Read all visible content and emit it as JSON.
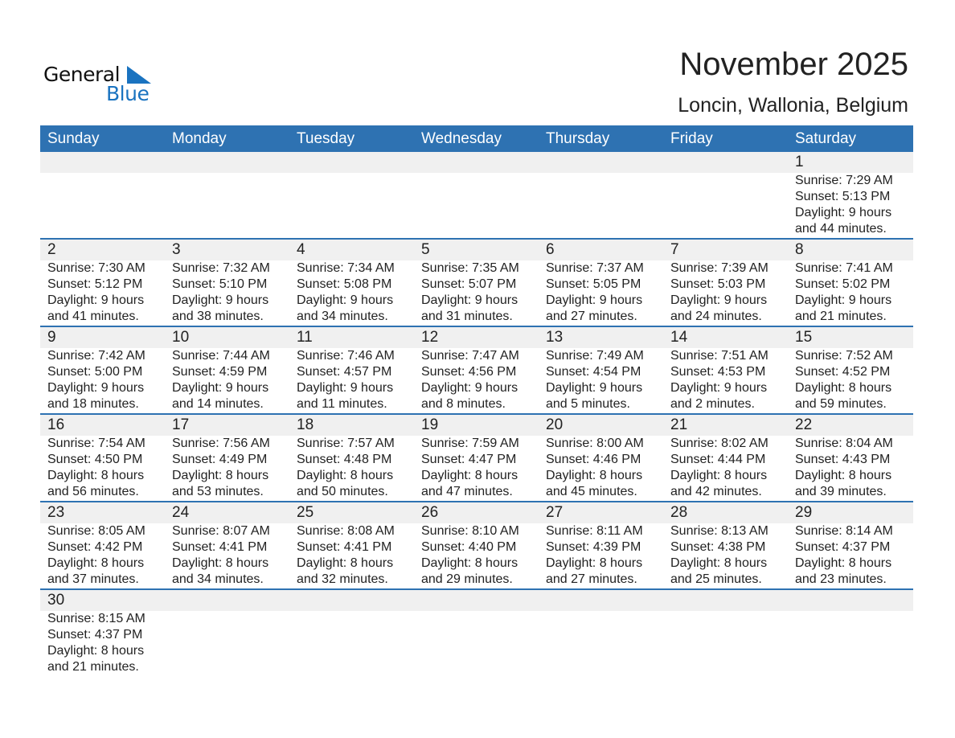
{
  "logo": {
    "line1": "General",
    "line2": "Blue",
    "accent": "#1a73c0"
  },
  "title": "November 2025",
  "subtitle": "Loncin, Wallonia, Belgium",
  "header_color": "#2e72b2",
  "weekdays": [
    "Sunday",
    "Monday",
    "Tuesday",
    "Wednesday",
    "Thursday",
    "Friday",
    "Saturday"
  ],
  "weeks": [
    [
      null,
      null,
      null,
      null,
      null,
      null,
      {
        "day": "1",
        "lines": [
          "Sunrise: 7:29 AM",
          "Sunset: 5:13 PM",
          "Daylight: 9 hours",
          "and 44 minutes."
        ]
      }
    ],
    [
      {
        "day": "2",
        "lines": [
          "Sunrise: 7:30 AM",
          "Sunset: 5:12 PM",
          "Daylight: 9 hours",
          "and 41 minutes."
        ]
      },
      {
        "day": "3",
        "lines": [
          "Sunrise: 7:32 AM",
          "Sunset: 5:10 PM",
          "Daylight: 9 hours",
          "and 38 minutes."
        ]
      },
      {
        "day": "4",
        "lines": [
          "Sunrise: 7:34 AM",
          "Sunset: 5:08 PM",
          "Daylight: 9 hours",
          "and 34 minutes."
        ]
      },
      {
        "day": "5",
        "lines": [
          "Sunrise: 7:35 AM",
          "Sunset: 5:07 PM",
          "Daylight: 9 hours",
          "and 31 minutes."
        ]
      },
      {
        "day": "6",
        "lines": [
          "Sunrise: 7:37 AM",
          "Sunset: 5:05 PM",
          "Daylight: 9 hours",
          "and 27 minutes."
        ]
      },
      {
        "day": "7",
        "lines": [
          "Sunrise: 7:39 AM",
          "Sunset: 5:03 PM",
          "Daylight: 9 hours",
          "and 24 minutes."
        ]
      },
      {
        "day": "8",
        "lines": [
          "Sunrise: 7:41 AM",
          "Sunset: 5:02 PM",
          "Daylight: 9 hours",
          "and 21 minutes."
        ]
      }
    ],
    [
      {
        "day": "9",
        "lines": [
          "Sunrise: 7:42 AM",
          "Sunset: 5:00 PM",
          "Daylight: 9 hours",
          "and 18 minutes."
        ]
      },
      {
        "day": "10",
        "lines": [
          "Sunrise: 7:44 AM",
          "Sunset: 4:59 PM",
          "Daylight: 9 hours",
          "and 14 minutes."
        ]
      },
      {
        "day": "11",
        "lines": [
          "Sunrise: 7:46 AM",
          "Sunset: 4:57 PM",
          "Daylight: 9 hours",
          "and 11 minutes."
        ]
      },
      {
        "day": "12",
        "lines": [
          "Sunrise: 7:47 AM",
          "Sunset: 4:56 PM",
          "Daylight: 9 hours",
          "and 8 minutes."
        ]
      },
      {
        "day": "13",
        "lines": [
          "Sunrise: 7:49 AM",
          "Sunset: 4:54 PM",
          "Daylight: 9 hours",
          "and 5 minutes."
        ]
      },
      {
        "day": "14",
        "lines": [
          "Sunrise: 7:51 AM",
          "Sunset: 4:53 PM",
          "Daylight: 9 hours",
          "and 2 minutes."
        ]
      },
      {
        "day": "15",
        "lines": [
          "Sunrise: 7:52 AM",
          "Sunset: 4:52 PM",
          "Daylight: 8 hours",
          "and 59 minutes."
        ]
      }
    ],
    [
      {
        "day": "16",
        "lines": [
          "Sunrise: 7:54 AM",
          "Sunset: 4:50 PM",
          "Daylight: 8 hours",
          "and 56 minutes."
        ]
      },
      {
        "day": "17",
        "lines": [
          "Sunrise: 7:56 AM",
          "Sunset: 4:49 PM",
          "Daylight: 8 hours",
          "and 53 minutes."
        ]
      },
      {
        "day": "18",
        "lines": [
          "Sunrise: 7:57 AM",
          "Sunset: 4:48 PM",
          "Daylight: 8 hours",
          "and 50 minutes."
        ]
      },
      {
        "day": "19",
        "lines": [
          "Sunrise: 7:59 AM",
          "Sunset: 4:47 PM",
          "Daylight: 8 hours",
          "and 47 minutes."
        ]
      },
      {
        "day": "20",
        "lines": [
          "Sunrise: 8:00 AM",
          "Sunset: 4:46 PM",
          "Daylight: 8 hours",
          "and 45 minutes."
        ]
      },
      {
        "day": "21",
        "lines": [
          "Sunrise: 8:02 AM",
          "Sunset: 4:44 PM",
          "Daylight: 8 hours",
          "and 42 minutes."
        ]
      },
      {
        "day": "22",
        "lines": [
          "Sunrise: 8:04 AM",
          "Sunset: 4:43 PM",
          "Daylight: 8 hours",
          "and 39 minutes."
        ]
      }
    ],
    [
      {
        "day": "23",
        "lines": [
          "Sunrise: 8:05 AM",
          "Sunset: 4:42 PM",
          "Daylight: 8 hours",
          "and 37 minutes."
        ]
      },
      {
        "day": "24",
        "lines": [
          "Sunrise: 8:07 AM",
          "Sunset: 4:41 PM",
          "Daylight: 8 hours",
          "and 34 minutes."
        ]
      },
      {
        "day": "25",
        "lines": [
          "Sunrise: 8:08 AM",
          "Sunset: 4:41 PM",
          "Daylight: 8 hours",
          "and 32 minutes."
        ]
      },
      {
        "day": "26",
        "lines": [
          "Sunrise: 8:10 AM",
          "Sunset: 4:40 PM",
          "Daylight: 8 hours",
          "and 29 minutes."
        ]
      },
      {
        "day": "27",
        "lines": [
          "Sunrise: 8:11 AM",
          "Sunset: 4:39 PM",
          "Daylight: 8 hours",
          "and 27 minutes."
        ]
      },
      {
        "day": "28",
        "lines": [
          "Sunrise: 8:13 AM",
          "Sunset: 4:38 PM",
          "Daylight: 8 hours",
          "and 25 minutes."
        ]
      },
      {
        "day": "29",
        "lines": [
          "Sunrise: 8:14 AM",
          "Sunset: 4:37 PM",
          "Daylight: 8 hours",
          "and 23 minutes."
        ]
      }
    ],
    [
      {
        "day": "30",
        "lines": [
          "Sunrise: 8:15 AM",
          "Sunset: 4:37 PM",
          "Daylight: 8 hours",
          "and 21 minutes."
        ]
      },
      null,
      null,
      null,
      null,
      null,
      null
    ]
  ]
}
